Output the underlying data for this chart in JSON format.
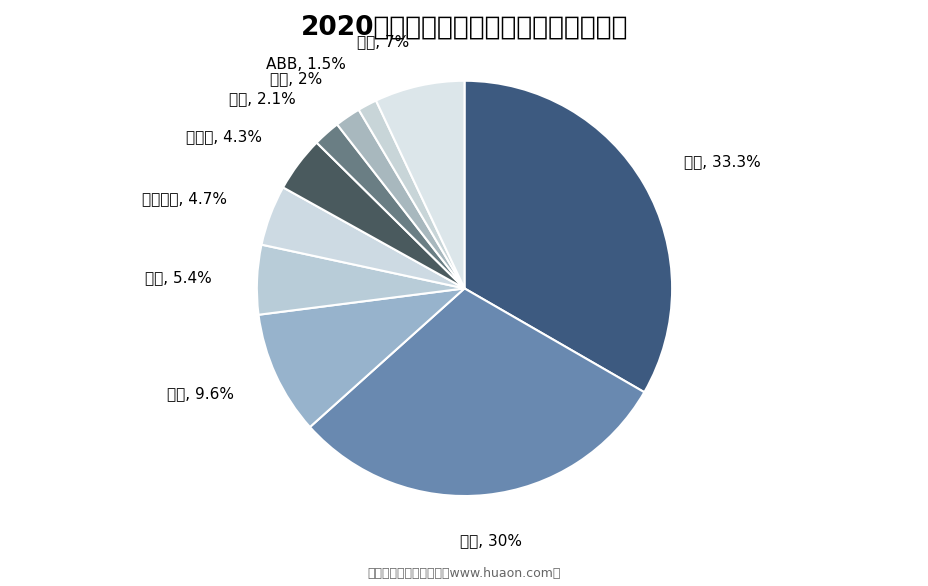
{
  "title": "2020年中国协作机器人市场格局分布情况",
  "labels": [
    "遨博",
    "优傲",
    "节卡",
    "达明",
    "大族电机",
    "艾利特",
    "韩华",
    "新松",
    "ABB",
    "其它"
  ],
  "values": [
    33.3,
    30.0,
    9.6,
    5.4,
    4.7,
    4.3,
    2.1,
    2.0,
    1.5,
    7.0
  ],
  "colors": [
    "#3d5a80",
    "#6989b0",
    "#97b3cc",
    "#b8ccd8",
    "#cddae3",
    "#4a5a5e",
    "#6a7e84",
    "#a8b8be",
    "#c8d5d8",
    "#dce6ea"
  ],
  "label_display": [
    "遨博, 33.3%",
    "优傲, 30%",
    "节卡, 9.6%",
    "达明, 5.4%",
    "大族电机, 4.7%",
    "艾利特, 4.3%",
    "韩华, 2.1%",
    "新松, 2%",
    "ABB, 1.5%",
    "其它, 7%"
  ],
  "startangle": 90,
  "subtitle": "制图：华经产业研究院（www.huaon.com）",
  "background_color": "#ffffff",
  "title_fontsize": 19,
  "label_fontsize": 11
}
